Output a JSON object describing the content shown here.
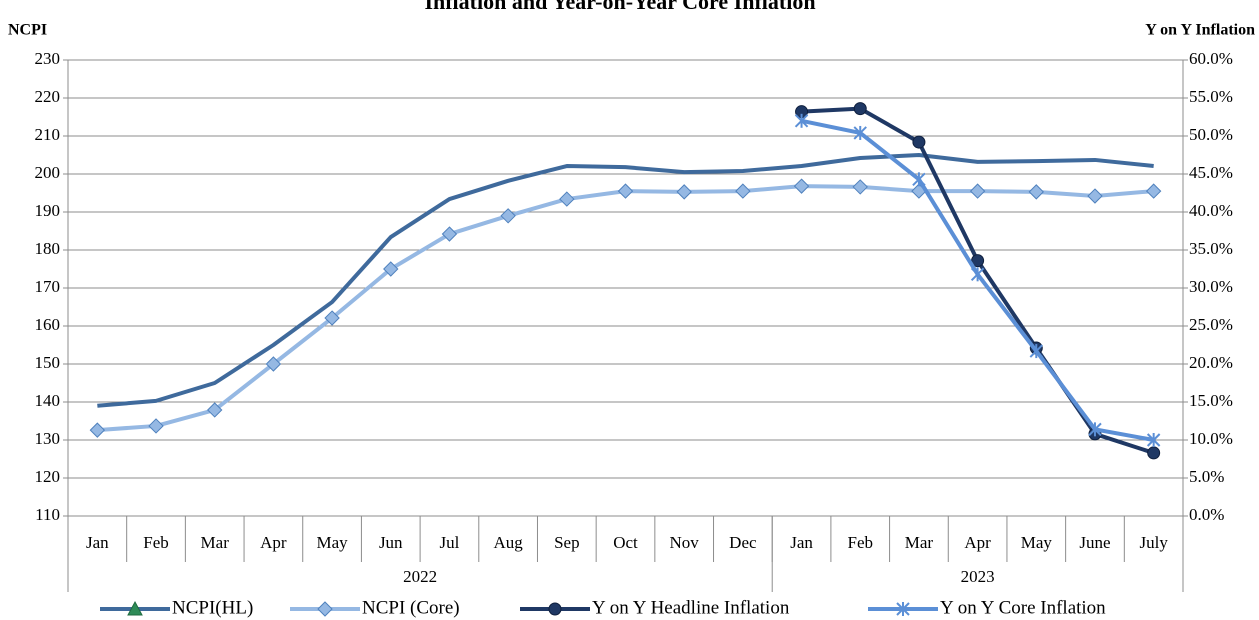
{
  "chart_data": {
    "type": "line",
    "title": "Inflation and Year-on-Year Core Inflation",
    "y_label": "NCPI",
    "y2_label": "Y on Y Inflation",
    "category_groups": [
      {
        "name": "2022",
        "categories": [
          "Jan",
          "Feb",
          "Mar",
          "Apr",
          "May",
          "Jun",
          "Jul",
          "Aug",
          "Sep",
          "Oct",
          "Nov",
          "Dec"
        ]
      },
      {
        "name": "2023",
        "categories": [
          "Jan",
          "Feb",
          "Mar",
          "Apr",
          "May",
          "June",
          "July"
        ]
      }
    ],
    "series": [
      {
        "name": "NCPI(HL)",
        "color": "#3f6a9c",
        "marker": "none",
        "axis": "y",
        "values": [
          139.0,
          140.3,
          145.0,
          155.0,
          166.3,
          183.4,
          193.4,
          198.2,
          202.1,
          201.8,
          200.5,
          200.8,
          202.1,
          204.2,
          205.0,
          203.2,
          203.4,
          203.7,
          202.1
        ]
      },
      {
        "name": "NCPI (Core)",
        "color": "#95b8e3",
        "marker": "diamond",
        "axis": "y",
        "values": [
          132.6,
          133.7,
          137.9,
          150.0,
          162.1,
          175.0,
          184.2,
          189.0,
          193.4,
          195.5,
          195.3,
          195.5,
          196.8,
          196.6,
          195.5,
          195.5,
          195.3,
          194.2,
          195.5
        ]
      },
      {
        "name": "Y on Y Headline Inflation",
        "color": "#1f3864",
        "marker": "circle",
        "axis": "y2",
        "values": [
          null,
          null,
          null,
          null,
          null,
          null,
          null,
          null,
          null,
          null,
          null,
          null,
          53.2,
          53.6,
          49.2,
          33.6,
          22.1,
          10.8,
          8.3
        ]
      },
      {
        "name": "Y on Y Core Inflation",
        "color": "#5b8fd6",
        "marker": "asterisk",
        "axis": "y2",
        "values": [
          null,
          null,
          null,
          null,
          null,
          null,
          null,
          null,
          null,
          null,
          null,
          null,
          52.0,
          50.4,
          44.3,
          31.8,
          21.7,
          11.4,
          10.0
        ]
      }
    ],
    "ylim": [
      110,
      230
    ],
    "yticks": [
      110,
      120,
      130,
      140,
      150,
      160,
      170,
      180,
      190,
      200,
      210,
      220,
      230
    ],
    "y2lim": [
      0,
      60
    ],
    "y2ticks": [
      {
        "value": 0,
        "label": "0.0%"
      },
      {
        "value": 5,
        "label": "5.0%"
      },
      {
        "value": 10,
        "label": "10.0%"
      },
      {
        "value": 15,
        "label": "15.0%"
      },
      {
        "value": 20,
        "label": "20.0%"
      },
      {
        "value": 25,
        "label": "25.0%"
      },
      {
        "value": 30,
        "label": "30.0%"
      },
      {
        "value": 35,
        "label": "35.0%"
      },
      {
        "value": 40,
        "label": "40.0%"
      },
      {
        "value": 45,
        "label": "45.0%"
      },
      {
        "value": 50,
        "label": "50.0%"
      },
      {
        "value": 55,
        "label": "55.0%"
      },
      {
        "value": 60,
        "label": "60.0%"
      }
    ],
    "grid": true,
    "legend": "bottom"
  }
}
